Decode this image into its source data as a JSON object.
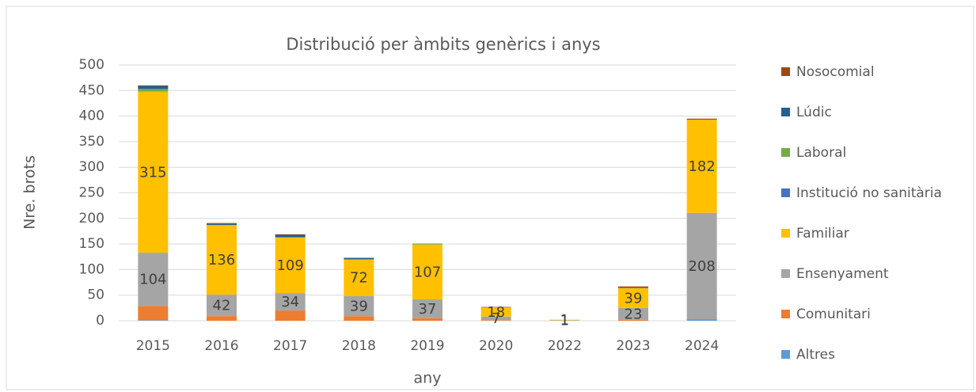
{
  "chart_data": {
    "type": "stacked_bar",
    "title": "Distribució per àmbits genèrics i anys",
    "x_label": "any",
    "y_label": "Nre. brots",
    "categories": [
      "2015",
      "2016",
      "2017",
      "2018",
      "2019",
      "2020",
      "2022",
      "2023",
      "2024"
    ],
    "series": [
      {
        "name": "Altres",
        "color": "#5b9bd5",
        "values": [
          1,
          0,
          0,
          0,
          0,
          0,
          0,
          0,
          3
        ]
      },
      {
        "name": "Comunitari",
        "color": "#ed7d31",
        "values": [
          28,
          9,
          20,
          9,
          5,
          1,
          0,
          2,
          0
        ]
      },
      {
        "name": "Ensenyament",
        "color": "#a5a5a5",
        "show_labels": true,
        "values": [
          104,
          42,
          34,
          39,
          37,
          7,
          1,
          23,
          208
        ]
      },
      {
        "name": "Familiar",
        "color": "#ffc000",
        "show_labels": true,
        "values": [
          315,
          136,
          109,
          72,
          107,
          18,
          1,
          39,
          182
        ]
      },
      {
        "name": "Institució no sanitària",
        "color": "#4472c4",
        "values": [
          0,
          0,
          0,
          0,
          0,
          0,
          0,
          0,
          0
        ]
      },
      {
        "name": "Laboral",
        "color": "#70ad47",
        "values": [
          5,
          0,
          0,
          0,
          2,
          0,
          0,
          0,
          0
        ]
      },
      {
        "name": "Lúdic",
        "color": "#255e91",
        "values": [
          6,
          3,
          5,
          3,
          0,
          0,
          0,
          1,
          0
        ]
      },
      {
        "name": "Nosocomial",
        "color": "#9e480e",
        "values": [
          1,
          1,
          1,
          0,
          0,
          1,
          0,
          2,
          2
        ]
      }
    ],
    "ylim": [
      0,
      500
    ],
    "yticks": [
      0,
      50,
      100,
      150,
      200,
      250,
      300,
      350,
      400,
      450,
      500
    ],
    "grid": true,
    "legend": "right"
  }
}
